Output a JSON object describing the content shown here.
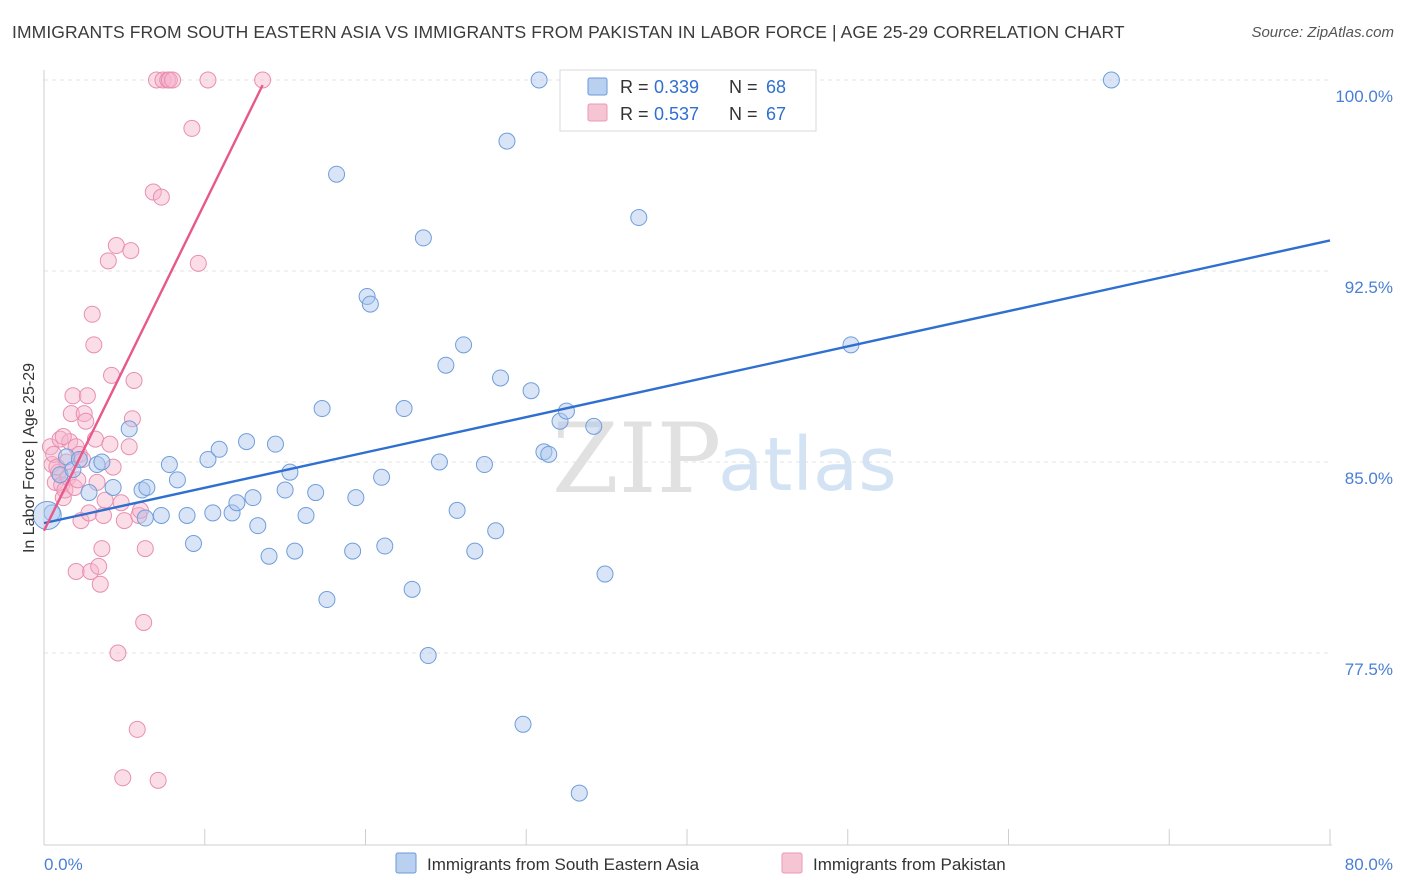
{
  "title": "IMMIGRANTS FROM SOUTH EASTERN ASIA VS IMMIGRANTS FROM PAKISTAN IN LABOR FORCE | AGE 25-29 CORRELATION CHART",
  "source": "Source: ZipAtlas.com",
  "watermark": {
    "zip": "ZIP",
    "atlas": "atlas"
  },
  "colors": {
    "blue": "#2f6fd0",
    "blue_fill": "#b9d0f0",
    "pink": "#e8588a",
    "pink_fill": "#f6bccf"
  },
  "legend": {
    "r_label": "R =",
    "n_label": "N =",
    "series": [
      {
        "r": "0.339",
        "n": "68"
      },
      {
        "r": "0.537",
        "n": "67"
      }
    ]
  },
  "chart_data": {
    "type": "scatter",
    "title": "IMMIGRANTS FROM SOUTH EASTERN ASIA VS IMMIGRANTS FROM PAKISTAN IN LABOR FORCE | AGE 25-29 CORRELATION CHART",
    "xlabel": "",
    "ylabel": "In Labor Force | Age 25-29",
    "xlim": [
      0,
      80
    ],
    "ylim": [
      70,
      100.5
    ],
    "x_tick_labels": [
      "0.0%",
      "80.0%"
    ],
    "y_ticks": [
      {
        "value": 100.0,
        "label": "100.0%"
      },
      {
        "value": 92.5,
        "label": "92.5%"
      },
      {
        "value": 85.0,
        "label": "85.0%"
      },
      {
        "value": 77.5,
        "label": "77.5%"
      }
    ],
    "series": [
      {
        "name": "Immigrants from South Eastern Asia",
        "color": "blue",
        "trend": {
          "x": [
            0.0,
            80.0
          ],
          "y": [
            82.6,
            93.7
          ]
        },
        "points": [
          [
            0.5,
            83.0
          ],
          [
            1.0,
            84.5
          ],
          [
            1.4,
            85.2
          ],
          [
            1.8,
            84.7
          ],
          [
            2.2,
            85.1
          ],
          [
            2.8,
            83.8
          ],
          [
            3.3,
            84.9
          ],
          [
            3.6,
            85.0
          ],
          [
            4.3,
            84.0
          ],
          [
            5.3,
            86.3
          ],
          [
            6.1,
            83.9
          ],
          [
            6.4,
            84.0
          ],
          [
            6.3,
            82.8
          ],
          [
            7.3,
            82.9
          ],
          [
            7.8,
            84.9
          ],
          [
            8.3,
            84.3
          ],
          [
            8.9,
            82.9
          ],
          [
            9.3,
            81.8
          ],
          [
            10.2,
            85.1
          ],
          [
            10.5,
            83.0
          ],
          [
            10.9,
            85.5
          ],
          [
            11.7,
            83.0
          ],
          [
            12.0,
            83.4
          ],
          [
            12.6,
            85.8
          ],
          [
            13.0,
            83.6
          ],
          [
            13.3,
            82.5
          ],
          [
            14.0,
            81.3
          ],
          [
            14.4,
            85.7
          ],
          [
            15.0,
            83.9
          ],
          [
            15.3,
            84.6
          ],
          [
            15.6,
            81.5
          ],
          [
            16.3,
            82.9
          ],
          [
            16.9,
            83.8
          ],
          [
            17.3,
            87.1
          ],
          [
            17.6,
            79.6
          ],
          [
            18.2,
            96.3
          ],
          [
            19.2,
            81.5
          ],
          [
            19.4,
            83.6
          ],
          [
            20.1,
            91.5
          ],
          [
            20.3,
            91.2
          ],
          [
            21.0,
            84.4
          ],
          [
            21.2,
            81.7
          ],
          [
            22.4,
            87.1
          ],
          [
            22.9,
            80.0
          ],
          [
            23.6,
            93.8
          ],
          [
            23.9,
            77.4
          ],
          [
            24.6,
            85.0
          ],
          [
            25.0,
            88.8
          ],
          [
            25.7,
            83.1
          ],
          [
            26.1,
            89.6
          ],
          [
            26.8,
            81.5
          ],
          [
            27.4,
            84.9
          ],
          [
            28.1,
            82.3
          ],
          [
            28.4,
            88.3
          ],
          [
            28.8,
            97.6
          ],
          [
            29.8,
            74.7
          ],
          [
            30.3,
            87.8
          ],
          [
            30.8,
            100.0
          ],
          [
            31.1,
            85.4
          ],
          [
            31.4,
            85.3
          ],
          [
            32.1,
            86.6
          ],
          [
            33.3,
            72.0
          ],
          [
            34.2,
            86.4
          ],
          [
            34.9,
            80.6
          ],
          [
            37.0,
            94.6
          ],
          [
            50.2,
            89.6
          ],
          [
            66.4,
            100.0
          ],
          [
            32.5,
            87.0
          ]
        ]
      },
      {
        "name": "Immigrants from Pakistan",
        "color": "pink",
        "trend": {
          "x": [
            0.0,
            13.6
          ],
          "y": [
            82.3,
            99.8
          ]
        },
        "points": [
          [
            0.4,
            85.6
          ],
          [
            0.5,
            84.9
          ],
          [
            0.6,
            85.3
          ],
          [
            0.7,
            84.2
          ],
          [
            0.9,
            84.6
          ],
          [
            1.0,
            85.9
          ],
          [
            1.1,
            84.1
          ],
          [
            1.2,
            83.6
          ],
          [
            1.3,
            83.9
          ],
          [
            1.4,
            85.0
          ],
          [
            1.5,
            84.4
          ],
          [
            1.6,
            85.8
          ],
          [
            1.7,
            86.9
          ],
          [
            1.8,
            87.6
          ],
          [
            1.9,
            84.0
          ],
          [
            2.0,
            85.6
          ],
          [
            2.1,
            84.3
          ],
          [
            2.2,
            85.3
          ],
          [
            2.0,
            80.7
          ],
          [
            2.3,
            82.7
          ],
          [
            2.5,
            86.9
          ],
          [
            2.6,
            86.6
          ],
          [
            2.7,
            87.6
          ],
          [
            2.8,
            83.0
          ],
          [
            2.9,
            80.7
          ],
          [
            3.0,
            90.8
          ],
          [
            3.1,
            89.6
          ],
          [
            3.2,
            85.9
          ],
          [
            3.3,
            84.2
          ],
          [
            3.4,
            80.9
          ],
          [
            3.5,
            80.2
          ],
          [
            3.6,
            81.6
          ],
          [
            3.7,
            82.9
          ],
          [
            3.8,
            83.5
          ],
          [
            4.0,
            92.9
          ],
          [
            4.1,
            85.7
          ],
          [
            4.2,
            88.4
          ],
          [
            4.3,
            84.8
          ],
          [
            4.5,
            93.5
          ],
          [
            4.6,
            77.5
          ],
          [
            4.8,
            83.4
          ],
          [
            4.9,
            72.6
          ],
          [
            5.0,
            82.7
          ],
          [
            5.3,
            85.6
          ],
          [
            5.4,
            93.3
          ],
          [
            5.5,
            86.7
          ],
          [
            5.6,
            88.2
          ],
          [
            5.8,
            74.5
          ],
          [
            5.9,
            82.9
          ],
          [
            6.0,
            83.1
          ],
          [
            6.2,
            78.7
          ],
          [
            6.3,
            81.6
          ],
          [
            6.8,
            95.6
          ],
          [
            7.0,
            100.0
          ],
          [
            7.1,
            72.5
          ],
          [
            7.3,
            95.4
          ],
          [
            7.4,
            100.0
          ],
          [
            7.7,
            100.0
          ],
          [
            7.8,
            100.0
          ],
          [
            8.0,
            100.0
          ],
          [
            9.2,
            98.1
          ],
          [
            10.2,
            100.0
          ],
          [
            13.6,
            100.0
          ],
          [
            9.6,
            92.8
          ],
          [
            1.2,
            86.0
          ],
          [
            0.8,
            84.8
          ],
          [
            2.4,
            85.1
          ]
        ]
      }
    ]
  }
}
